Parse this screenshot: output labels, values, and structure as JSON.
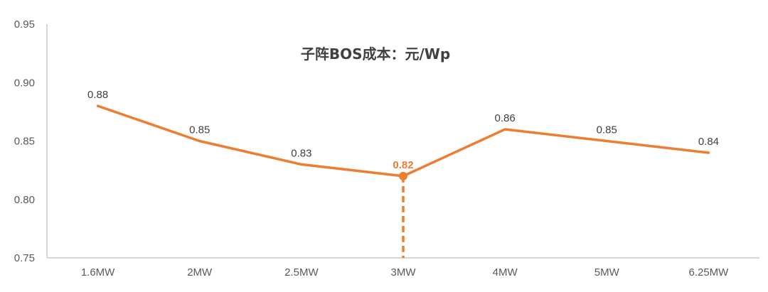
{
  "chart_data": {
    "type": "line",
    "title": "子阵BOS成本：元/Wp",
    "xlabel": "",
    "ylabel": "",
    "categories": [
      "1.6MW",
      "2MW",
      "2.5MW",
      "3MW",
      "4MW",
      "5MW",
      "6.25MW"
    ],
    "series": [
      {
        "values": [
          0.88,
          0.85,
          0.83,
          0.82,
          0.86,
          0.85,
          0.84
        ],
        "data_labels": [
          "0.88",
          "0.85",
          "0.83",
          "0.82",
          "0.86",
          "0.85",
          "0.84"
        ],
        "color": "#ED7D31"
      }
    ],
    "ylim": [
      0.75,
      0.95
    ],
    "yticks": [
      "0.75",
      "0.80",
      "0.85",
      "0.90",
      "0.95"
    ],
    "highlight": {
      "category": "3MW",
      "value": 0.82,
      "label_color": "#ED7D31",
      "dashed_drop_line": true
    },
    "grid": false,
    "legend": "none",
    "colors": {
      "line": "#ED7D31",
      "axis": "#BFBFBF",
      "text": "#595959"
    }
  }
}
